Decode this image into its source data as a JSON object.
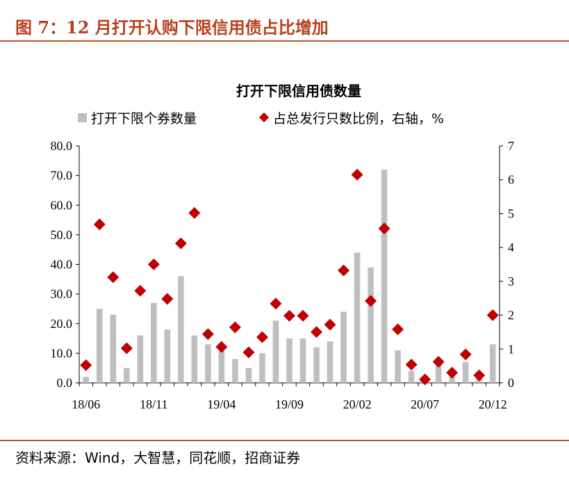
{
  "figure_title": "图 7：12 月打开认购下限信用债占比增加",
  "source_note": "资料来源：Wind，大智慧，同花顺，招商证券",
  "colors": {
    "bar": "#bfbfbf",
    "marker": "#c00000",
    "accent": "#b8401c"
  },
  "chart_data": {
    "type": "bar",
    "title": "打开下限信用债数量",
    "legend_position": "top",
    "x_tick_labels": [
      "18/06",
      "18/11",
      "19/04",
      "19/09",
      "20/02",
      "20/07",
      "20/12"
    ],
    "categories": [
      "18/06",
      "18/07",
      "18/08",
      "18/09",
      "18/10",
      "18/11",
      "18/12",
      "19/01",
      "19/02",
      "19/03",
      "19/04",
      "19/05",
      "19/06",
      "19/07",
      "19/08",
      "19/09",
      "19/10",
      "19/11",
      "19/12",
      "20/01",
      "20/02",
      "20/03",
      "20/04",
      "20/05",
      "20/06",
      "20/07",
      "20/08",
      "20/09",
      "20/10",
      "20/11",
      "20/12"
    ],
    "left_axis": {
      "ylim": [
        0,
        80
      ],
      "ticks": [
        "0.0",
        "10.0",
        "20.0",
        "30.0",
        "40.0",
        "50.0",
        "60.0",
        "70.0",
        "80.0"
      ]
    },
    "right_axis": {
      "ylim": [
        0,
        7
      ],
      "ticks": [
        "0",
        "1",
        "2",
        "3",
        "4",
        "5",
        "6",
        "7"
      ]
    },
    "series": [
      {
        "name": "打开下限个券数量",
        "type": "bar",
        "axis": "left",
        "values": [
          2,
          25,
          23,
          5,
          16,
          27,
          18,
          36,
          16,
          13,
          12,
          8,
          5,
          10,
          21,
          15,
          15,
          12,
          14,
          24,
          44,
          39,
          72,
          11,
          4,
          2,
          6,
          3,
          7,
          2,
          13
        ]
      },
      {
        "name": "占总发行只数比例，右轴，%",
        "type": "scatter",
        "axis": "right",
        "values": [
          0.52,
          4.68,
          3.12,
          1.02,
          2.72,
          3.5,
          2.48,
          4.12,
          5.02,
          1.44,
          1.06,
          1.64,
          0.9,
          1.35,
          2.34,
          1.98,
          1.98,
          1.5,
          1.72,
          3.32,
          6.15,
          2.42,
          4.56,
          1.58,
          0.54,
          0.1,
          0.62,
          0.3,
          0.84,
          0.22,
          2.0
        ]
      }
    ]
  }
}
